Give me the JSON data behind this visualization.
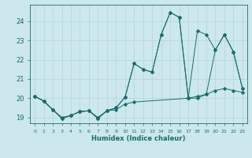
{
  "xlabel": "Humidex (Indice chaleur)",
  "background_color": "#cce8ec",
  "grid_color": "#b8d8dc",
  "line_color": "#1a6b6b",
  "xlim": [
    -0.5,
    23.5
  ],
  "ylim": [
    18.7,
    24.85
  ],
  "yticks": [
    19,
    20,
    21,
    22,
    23,
    24
  ],
  "xtick_labels": [
    "0",
    "1",
    "2",
    "3",
    "4",
    "5",
    "6",
    "7",
    "8",
    "9",
    "10",
    "11",
    "12",
    "13",
    "14",
    "15",
    "16",
    "17",
    "18",
    "19",
    "20",
    "21",
    "22",
    "23"
  ],
  "series": [
    {
      "x": [
        0,
        1,
        2,
        3,
        4,
        5,
        6,
        7,
        8,
        9,
        10,
        11,
        17,
        18,
        19,
        20,
        21,
        22,
        23
      ],
      "y": [
        20.1,
        19.85,
        19.4,
        18.95,
        19.1,
        19.3,
        19.35,
        18.95,
        19.35,
        19.4,
        19.7,
        19.8,
        20.0,
        20.1,
        20.2,
        20.4,
        20.5,
        20.4,
        20.3
      ]
    },
    {
      "x": [
        0,
        1,
        2,
        3,
        4,
        5,
        6,
        7,
        8,
        9,
        10,
        11,
        12,
        13,
        14,
        15,
        16,
        17,
        18,
        19,
        20,
        21,
        22,
        23
      ],
      "y": [
        20.1,
        19.85,
        19.4,
        18.95,
        19.1,
        19.3,
        19.35,
        18.95,
        19.35,
        19.5,
        20.05,
        21.8,
        21.5,
        21.35,
        23.3,
        24.45,
        24.2,
        20.0,
        20.0,
        20.2,
        22.5,
        23.3,
        22.4,
        20.5
      ]
    },
    {
      "x": [
        0,
        1,
        2,
        3,
        4,
        5,
        6,
        7,
        8,
        9,
        10,
        11,
        12,
        13,
        14,
        15,
        16,
        17,
        18,
        19,
        20,
        21,
        22,
        23
      ],
      "y": [
        20.1,
        19.85,
        19.4,
        19.0,
        19.1,
        19.3,
        19.35,
        19.0,
        19.35,
        19.5,
        20.05,
        21.8,
        21.5,
        21.35,
        23.3,
        24.45,
        24.2,
        20.0,
        23.5,
        23.3,
        22.5,
        23.3,
        22.4,
        20.5
      ]
    }
  ]
}
